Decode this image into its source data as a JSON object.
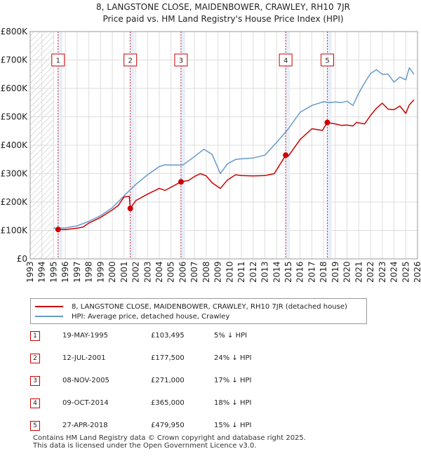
{
  "chart_data": {
    "type": "line",
    "title": "8, LANGSTONE CLOSE, MAIDENBOWER, CRAWLEY, RH10 7JR",
    "subtitle": "Price paid vs. HM Land Registry's House Price Index (HPI)",
    "xlim": [
      1993,
      2026
    ],
    "ylim": [
      0,
      800000
    ],
    "x_ticks": [
      "1993",
      "1994",
      "1995",
      "1996",
      "1997",
      "1998",
      "1999",
      "2000",
      "2001",
      "2002",
      "2003",
      "2004",
      "2005",
      "2006",
      "2007",
      "2008",
      "2009",
      "2010",
      "2011",
      "2012",
      "2013",
      "2014",
      "2015",
      "2016",
      "2017",
      "2018",
      "2019",
      "2020",
      "2021",
      "2022",
      "2023",
      "2024",
      "2025",
      "2026"
    ],
    "y_ticks": [
      {
        "value": 0,
        "label": "£0"
      },
      {
        "value": 100000,
        "label": "£100K"
      },
      {
        "value": 200000,
        "label": "£200K"
      },
      {
        "value": 300000,
        "label": "£300K"
      },
      {
        "value": 400000,
        "label": "£400K"
      },
      {
        "value": 500000,
        "label": "£500K"
      },
      {
        "value": 600000,
        "label": "£600K"
      },
      {
        "value": 700000,
        "label": "£700K"
      },
      {
        "value": 800000,
        "label": "£800K"
      }
    ],
    "series": [
      {
        "name": "8, LANGSTONE CLOSE, MAIDENBOWER, CRAWLEY, RH10 7JR (detached house)",
        "color": "#cc0000",
        "x": [
          1995.38,
          1996.0,
          1997.0,
          1997.5,
          1998.0,
          1999.0,
          2000.0,
          2000.5,
          2001.0,
          2001.45,
          2001.53,
          2002.0,
          2003.0,
          2004.0,
          2004.5,
          2005.0,
          2005.85,
          2006.5,
          2007.0,
          2007.5,
          2008.0,
          2008.5,
          2009.2,
          2009.8,
          2010.5,
          2011.0,
          2012.0,
          2013.0,
          2013.8,
          2014.77,
          2015.0,
          2016.0,
          2017.0,
          2017.9,
          2018.32,
          2019.0,
          2019.5,
          2020.0,
          2020.5,
          2020.8,
          2021.5,
          2022.0,
          2022.5,
          2023.0,
          2023.5,
          2024.0,
          2024.5,
          2025.0,
          2025.3,
          2025.7
        ],
        "y": [
          103495,
          103000,
          108000,
          112000,
          126000,
          146000,
          172000,
          188000,
          218000,
          220000,
          177500,
          205000,
          228000,
          248000,
          241000,
          252000,
          271000,
          276000,
          290000,
          300000,
          292000,
          268000,
          248000,
          277000,
          296000,
          293000,
          292000,
          293000,
          300000,
          365000,
          362000,
          420000,
          458000,
          452000,
          479950,
          475000,
          470000,
          471000,
          468000,
          480000,
          475000,
          505000,
          530000,
          548000,
          527000,
          525000,
          538000,
          512000,
          542000,
          560000
        ]
      },
      {
        "name": "HPI: Average price, detached house, Crawley",
        "color": "#6699cc",
        "x": [
          1995.0,
          1996.0,
          1997.0,
          1998.0,
          1999.0,
          2000.0,
          2001.0,
          2002.0,
          2003.0,
          2004.0,
          2004.5,
          2005.0,
          2006.0,
          2007.0,
          2007.8,
          2008.5,
          2009.2,
          2009.8,
          2010.5,
          2011.0,
          2012.0,
          2013.0,
          2014.0,
          2015.0,
          2016.0,
          2017.0,
          2018.0,
          2018.5,
          2019.0,
          2019.5,
          2020.0,
          2020.5,
          2021.0,
          2021.5,
          2022.0,
          2022.5,
          2023.0,
          2023.5,
          2024.0,
          2024.5,
          2025.0,
          2025.3,
          2025.7
        ],
        "y": [
          108000,
          109000,
          116000,
          132000,
          152000,
          180000,
          222000,
          262000,
          296000,
          325000,
          331000,
          330000,
          330000,
          360000,
          386000,
          368000,
          300000,
          334000,
          350000,
          352000,
          355000,
          365000,
          410000,
          458000,
          516000,
          540000,
          553000,
          550000,
          552000,
          550000,
          555000,
          540000,
          584000,
          620000,
          652000,
          666000,
          650000,
          650000,
          622000,
          640000,
          630000,
          672000,
          650000
        ]
      }
    ],
    "sales": [
      {
        "id": "1",
        "date": "19-MAY-1995",
        "price": "£103,495",
        "hpi": "5% ↓ HPI",
        "x": 1995.38,
        "y": 103495
      },
      {
        "id": "2",
        "date": "12-JUL-2001",
        "price": "£177,500",
        "hpi": "24% ↓ HPI",
        "x": 2001.53,
        "y": 177500
      },
      {
        "id": "3",
        "date": "08-NOV-2005",
        "price": "£271,000",
        "hpi": "17% ↓ HPI",
        "x": 2005.85,
        "y": 271000
      },
      {
        "id": "4",
        "date": "09-OCT-2014",
        "price": "£365,000",
        "hpi": "18% ↓ HPI",
        "x": 2014.77,
        "y": 365000
      },
      {
        "id": "5",
        "date": "27-APR-2018",
        "price": "£479,950",
        "hpi": "15% ↓ HPI",
        "x": 2018.32,
        "y": 479950
      }
    ],
    "hatched_before": 1995.0
  },
  "legend": {
    "red_label": "8, LANGSTONE CLOSE, MAIDENBOWER, CRAWLEY, RH10 7JR (detached house)",
    "blue_label": "HPI: Average price, detached house, Crawley"
  },
  "footer": {
    "line1": "Contains HM Land Registry data © Crown copyright and database right 2025.",
    "line2": "This data is licensed under the Open Government Licence v3.0."
  },
  "colors": {
    "red": "#cc0000",
    "blue": "#6699cc",
    "grid": "#dddddd",
    "band": "#e8eef7",
    "plot_bg": "#ffffff"
  }
}
